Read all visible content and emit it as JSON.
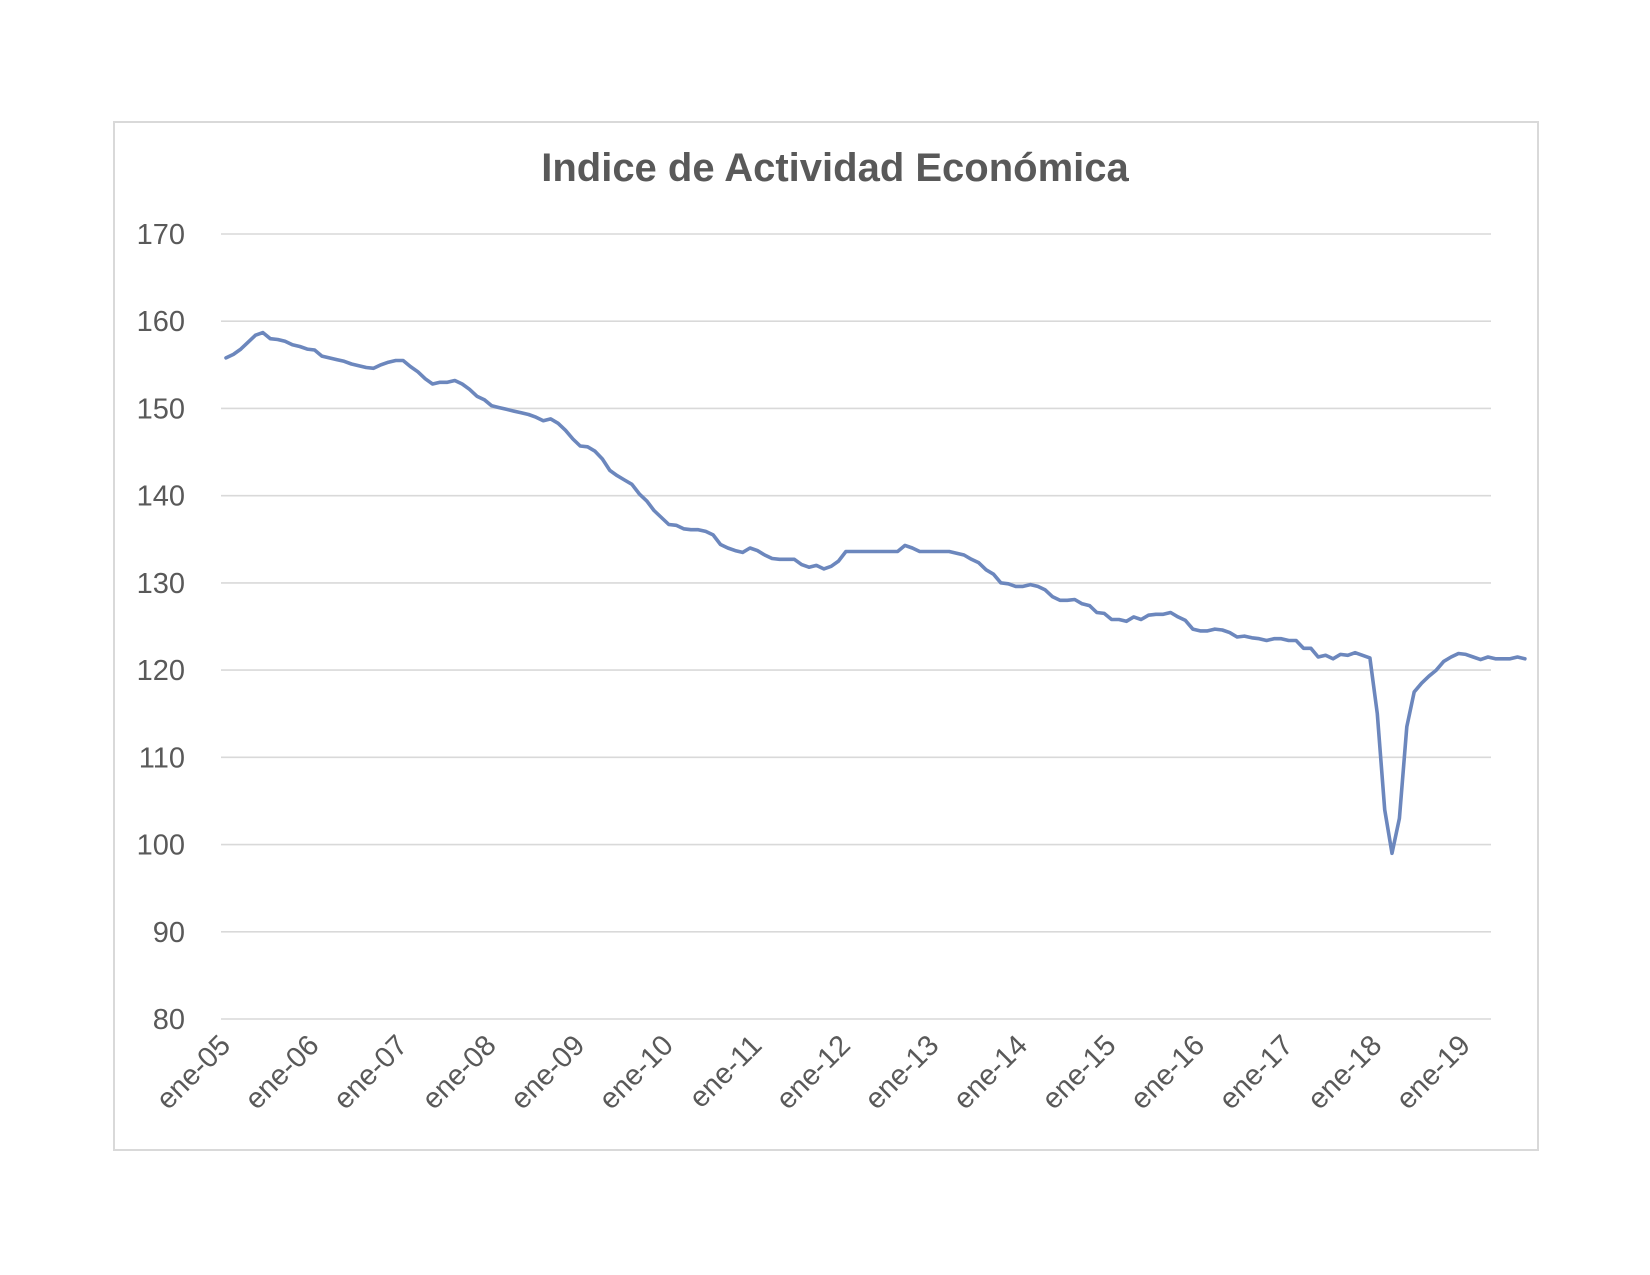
{
  "chart_data": {
    "type": "line",
    "title": "Indice de Actividad Económica",
    "xlabel": "",
    "ylabel": "",
    "ylim": [
      80,
      170
    ],
    "yticks": [
      "80",
      "90",
      "100",
      "110",
      "120",
      "130",
      "140",
      "150",
      "160",
      "170"
    ],
    "xticks": [
      "ene-05",
      "ene-06",
      "ene-07",
      "ene-08",
      "ene-09",
      "ene-10",
      "ene-11",
      "ene-12",
      "ene-13",
      "ene-14",
      "ene-15",
      "ene-16",
      "ene-17",
      "ene-18",
      "ene-19"
    ],
    "grid": true,
    "legend": "none",
    "colors": {
      "line": "#6c87bd",
      "grid": "#d9d9d9",
      "text": "#595959",
      "frame": "#d9d9d9"
    },
    "x_start": "ene-05",
    "x_frequency": "monthly",
    "series": [
      {
        "values": [
          155.8,
          156.2,
          156.8,
          157.6,
          158.4,
          158.7,
          158.0,
          157.9,
          157.7,
          157.3,
          157.1,
          156.8,
          156.7,
          156.0,
          155.8,
          155.6,
          155.4,
          155.1,
          154.9,
          154.7,
          154.6,
          155.0,
          155.3,
          155.5,
          155.5,
          154.8,
          154.2,
          153.4,
          152.8,
          153.0,
          153.0,
          153.2,
          152.8,
          152.2,
          151.4,
          151.0,
          150.3,
          150.1,
          149.9,
          149.7,
          149.5,
          149.3,
          149.0,
          148.6,
          148.8,
          148.3,
          147.5,
          146.5,
          145.7,
          145.6,
          145.1,
          144.2,
          142.9,
          142.3,
          141.8,
          141.3,
          140.2,
          139.4,
          138.3,
          137.5,
          136.7,
          136.6,
          136.2,
          136.1,
          136.1,
          135.9,
          135.5,
          134.4,
          134.0,
          133.7,
          133.5,
          134.0,
          133.7,
          133.2,
          132.8,
          132.7,
          132.7,
          132.7,
          132.1,
          131.8,
          132.0,
          131.6,
          131.9,
          132.5,
          133.6,
          133.6,
          133.6,
          133.6,
          133.6,
          133.6,
          133.6,
          133.6,
          134.3,
          134.0,
          133.6,
          133.6,
          133.6,
          133.6,
          133.6,
          133.4,
          133.2,
          132.7,
          132.3,
          131.5,
          131.0,
          130.0,
          129.9,
          129.6,
          129.6,
          129.8,
          129.6,
          129.2,
          128.4,
          128.0,
          128.0,
          128.1,
          127.6,
          127.4,
          126.6,
          126.5,
          125.8,
          125.8,
          125.6,
          126.1,
          125.8,
          126.3,
          126.4,
          126.4,
          126.6,
          126.1,
          125.7,
          124.7,
          124.5,
          124.5,
          124.7,
          124.6,
          124.3,
          123.8,
          123.9,
          123.7,
          123.6,
          123.4,
          123.6,
          123.6,
          123.4,
          123.4,
          122.5,
          122.5,
          121.5,
          121.7,
          121.3,
          121.8,
          121.7,
          122.0,
          121.7,
          121.4,
          115.0,
          104.0,
          99.0,
          103.0,
          113.5,
          117.5,
          118.5,
          119.3,
          120.0,
          121.0,
          121.5,
          121.9,
          121.8,
          121.5,
          121.2,
          121.5,
          121.3,
          121.3,
          121.3,
          121.5,
          121.3
        ]
      }
    ]
  }
}
